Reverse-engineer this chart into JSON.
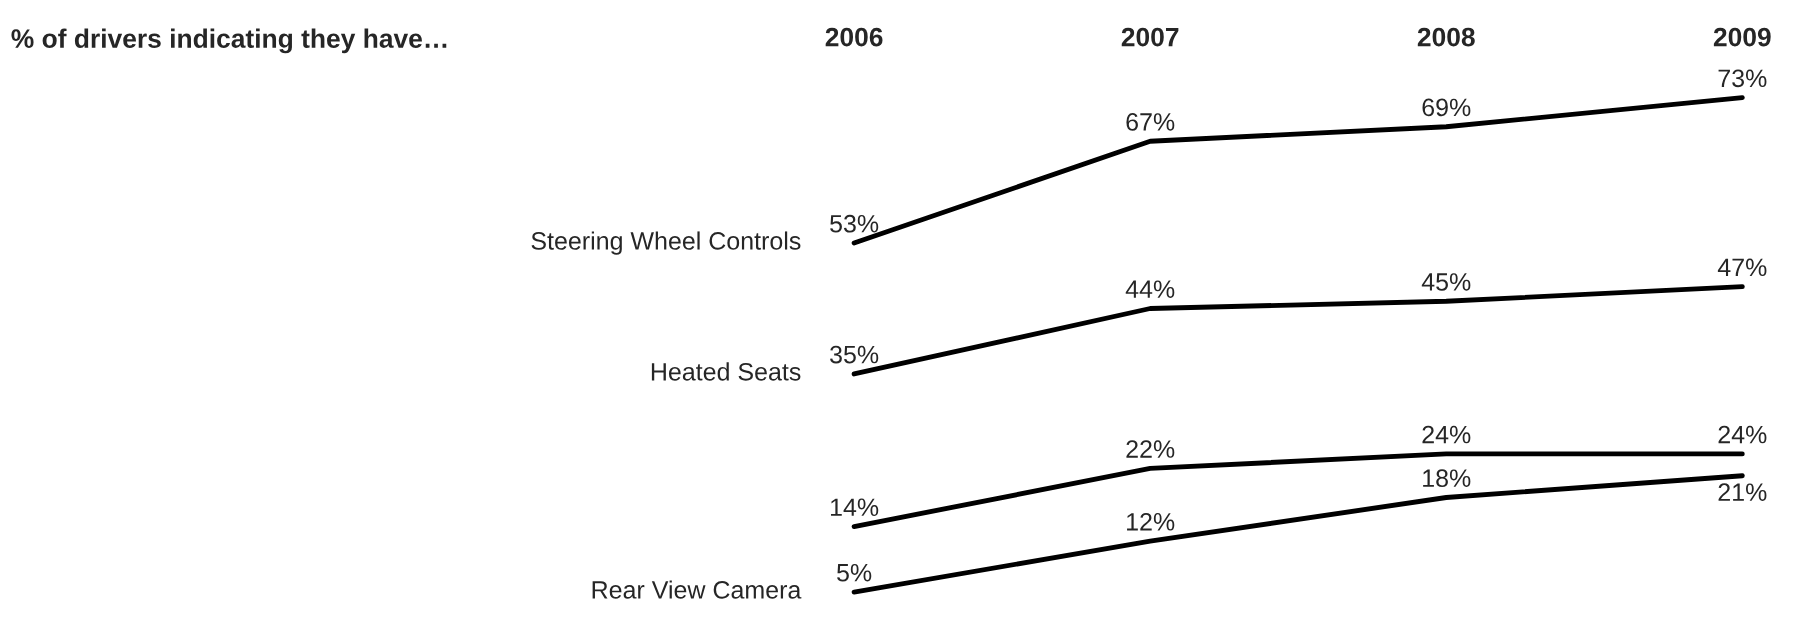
{
  "chart_data": {
    "type": "line",
    "title": "% of drivers indicating they have…",
    "categories": [
      "2006",
      "2007",
      "2008",
      "2009"
    ],
    "series": [
      {
        "name": "Steering Wheel Controls",
        "color": "#000000",
        "values": [
          53,
          67,
          69,
          73
        ],
        "value_labels": [
          "53%",
          "67%",
          "69%",
          "73%"
        ]
      },
      {
        "name": "Heated Seats",
        "color": "#000000",
        "values": [
          35,
          44,
          45,
          47
        ],
        "value_labels": [
          "35%",
          "44%",
          "45%",
          "47%"
        ]
      },
      {
        "color": "#000000",
        "values": [
          14,
          22,
          24,
          24
        ],
        "value_labels": [
          "14%",
          "22%",
          "24%",
          "24%"
        ]
      },
      {
        "name": "Rear View Camera",
        "color": "#000000",
        "values": [
          5,
          12,
          18,
          21
        ],
        "value_labels": [
          "5%",
          "12%",
          "18%",
          "21%"
        ]
      }
    ],
    "grid": false,
    "legend": false,
    "line_style": "solid"
  }
}
